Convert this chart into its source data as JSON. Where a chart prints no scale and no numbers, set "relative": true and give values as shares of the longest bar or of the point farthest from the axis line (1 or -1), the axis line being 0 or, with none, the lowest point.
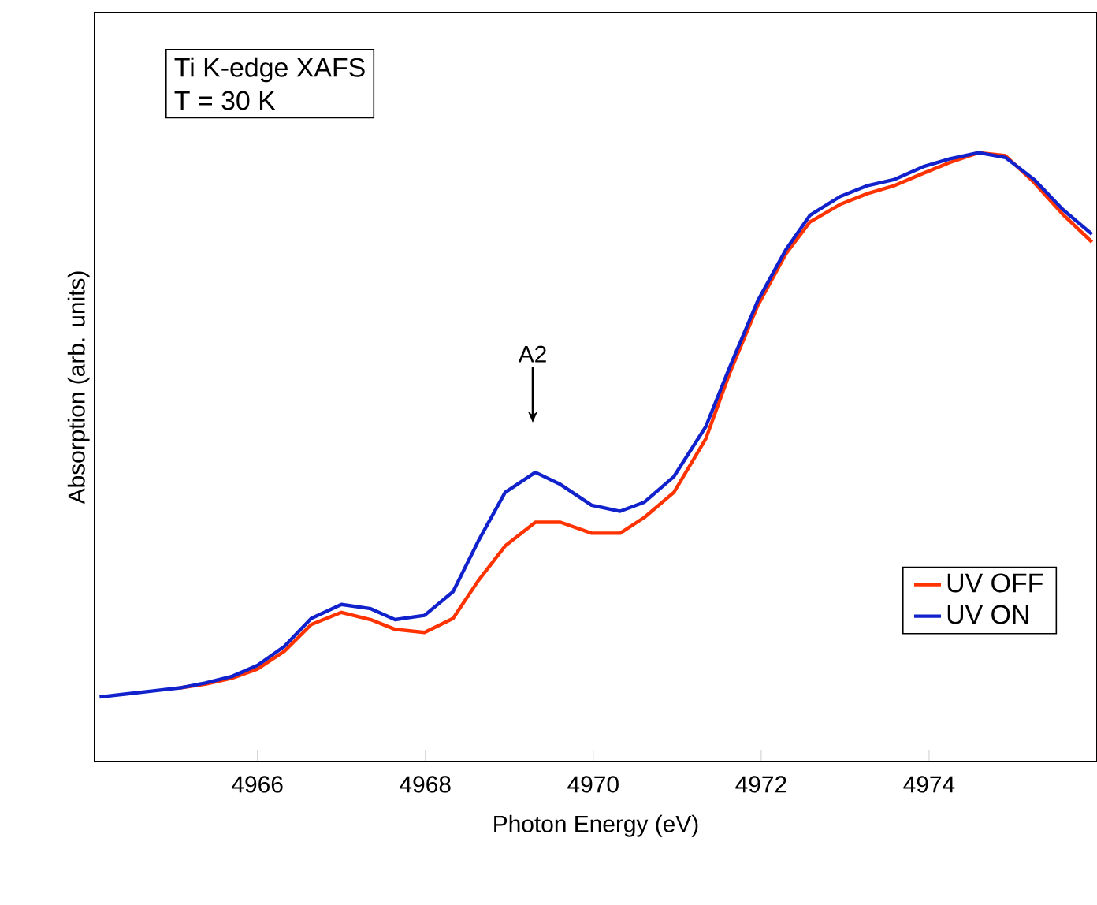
{
  "chart_data": {
    "type": "line",
    "xlabel": "Photon Energy (eV)",
    "ylabel": "Absorption (arb. units)",
    "relative": true,
    "xlim": [
      4964.06,
      4976.0
    ],
    "xticks": [
      4966,
      4968,
      4970,
      4972,
      4974
    ],
    "x": [
      4964.12,
      4964.44,
      4964.76,
      4965.08,
      4965.38,
      4965.7,
      4966.0,
      4966.32,
      4966.64,
      4967.0,
      4967.35,
      4967.64,
      4967.99,
      4968.33,
      4968.63,
      4968.95,
      4969.31,
      4969.61,
      4969.98,
      4970.32,
      4970.61,
      4970.96,
      4971.34,
      4971.62,
      4971.96,
      4972.3,
      4972.58,
      4972.94,
      4973.27,
      4973.59,
      4973.93,
      4974.25,
      4974.59,
      4974.91,
      4975.25,
      4975.59,
      4975.94
    ],
    "series": [
      {
        "name": "UV OFF",
        "color": "#ff3300",
        "values": [
          null,
          null,
          null,
          0.121,
          0.127,
          0.137,
          0.152,
          0.181,
          0.225,
          0.245,
          0.233,
          0.217,
          0.212,
          0.235,
          0.297,
          0.354,
          0.393,
          0.393,
          0.375,
          0.375,
          0.401,
          0.442,
          0.53,
          0.636,
          0.749,
          0.835,
          0.886,
          0.915,
          0.933,
          0.946,
          0.966,
          0.984,
          1.0,
          0.995,
          0.951,
          0.899,
          0.853
        ]
      },
      {
        "name": "UV ON",
        "color": "#1122cc",
        "values": [
          0.106,
          0.111,
          0.116,
          0.121,
          0.129,
          0.14,
          0.158,
          0.189,
          0.235,
          0.258,
          0.251,
          0.233,
          0.24,
          0.279,
          0.362,
          0.442,
          0.475,
          0.455,
          0.421,
          0.411,
          0.426,
          0.468,
          0.55,
          0.646,
          0.757,
          0.842,
          0.897,
          0.928,
          0.946,
          0.956,
          0.977,
          0.99,
          1.0,
          0.992,
          0.956,
          0.907,
          0.866
        ]
      }
    ],
    "annotations": [
      "Ti K-edge XAFS",
      "T = 30 K",
      "A2"
    ],
    "legend": "bottom right",
    "grid": false,
    "marker": "none",
    "line_style": "solid"
  }
}
